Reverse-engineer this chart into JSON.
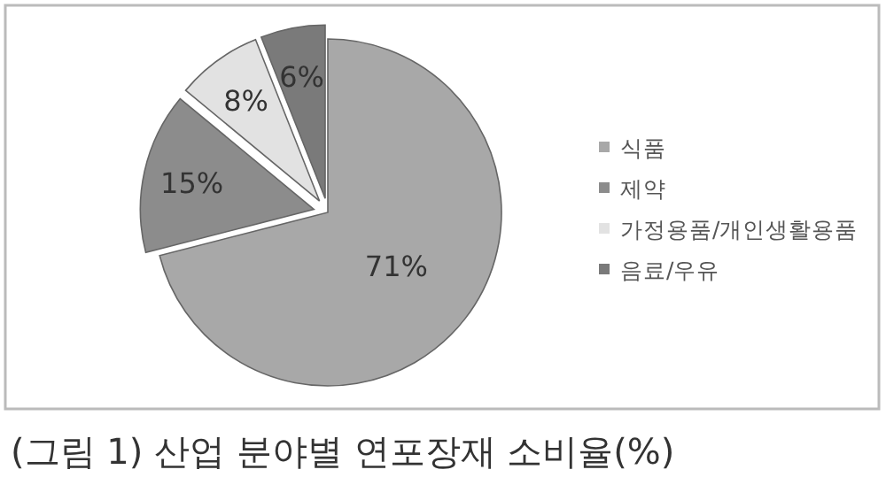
{
  "chart_data": {
    "type": "pie",
    "title": "(그림 1) 산업 분야별 연포장재 소비율(%)",
    "categories": [
      "식품",
      "제약",
      "가정용품/개인생활용품",
      "음료/우유"
    ],
    "values": [
      71,
      15,
      8,
      6
    ],
    "value_labels": [
      "71%",
      "15%",
      "8%",
      "6%"
    ],
    "colors": [
      "#a8a8a8",
      "#8c8c8c",
      "#e2e2e2",
      "#7a7a7a"
    ],
    "legend": "right"
  }
}
